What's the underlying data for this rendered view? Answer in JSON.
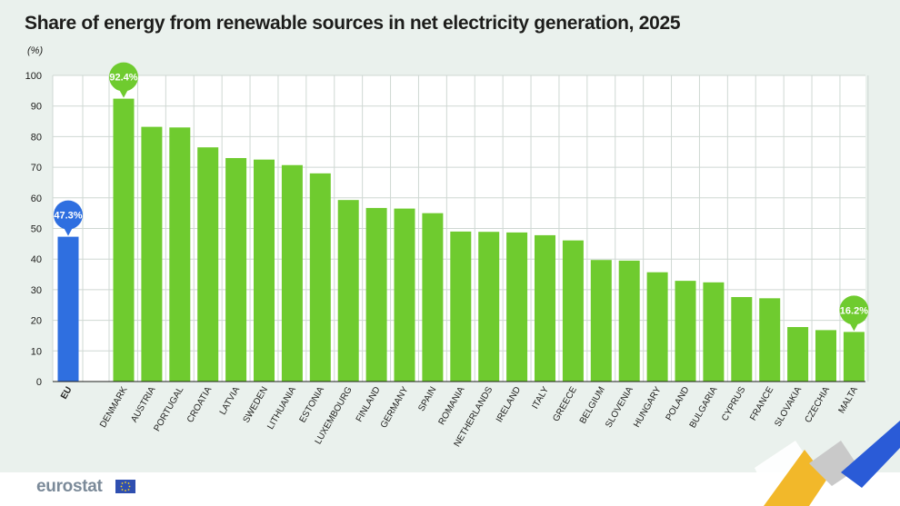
{
  "chart_data": {
    "type": "bar",
    "title": "Share of energy from renewable sources in net electricity generation, 2025",
    "unit_label": "(%)",
    "ylim": [
      0,
      100
    ],
    "yticks": [
      0,
      10,
      20,
      30,
      40,
      50,
      60,
      70,
      80,
      90,
      100
    ],
    "grid": true,
    "categories": [
      "EU",
      "DENMARK",
      "AUSTRIA",
      "PORTUGAL",
      "CROATIA",
      "LATVIA",
      "SWEDEN",
      "LITHUANIA",
      "ESTONIA",
      "LUXEMBOURG",
      "FINLAND",
      "GERMANY",
      "SPAIN",
      "ROMANIA",
      "NETHERLANDS",
      "IRELAND",
      "ITALY",
      "GREECE",
      "BELGIUM",
      "SLOVENIA",
      "HUNGARY",
      "POLAND",
      "BULGARIA",
      "CYPRUS",
      "FRANCE",
      "SLOVAKIA",
      "CZECHIA",
      "MALTA"
    ],
    "values": [
      47.3,
      92.4,
      83.2,
      83.0,
      76.5,
      73.0,
      72.5,
      70.7,
      68.0,
      59.3,
      56.7,
      56.5,
      55.0,
      49.0,
      48.9,
      48.7,
      47.8,
      46.1,
      39.7,
      39.5,
      35.7,
      32.9,
      32.4,
      27.6,
      27.2,
      17.8,
      16.8,
      16.2
    ],
    "annotations": [
      {
        "category": "EU",
        "label": "47.3%"
      },
      {
        "category": "DENMARK",
        "label": "92.4%"
      },
      {
        "category": "MALTA",
        "label": "16.2%"
      }
    ],
    "colors": {
      "eu": "#2f6fe0",
      "countries": "#6fcb2f",
      "grid": "#cfd8d3",
      "axis": "#1d1d1b"
    }
  },
  "branding": {
    "logo": "eurostat"
  }
}
